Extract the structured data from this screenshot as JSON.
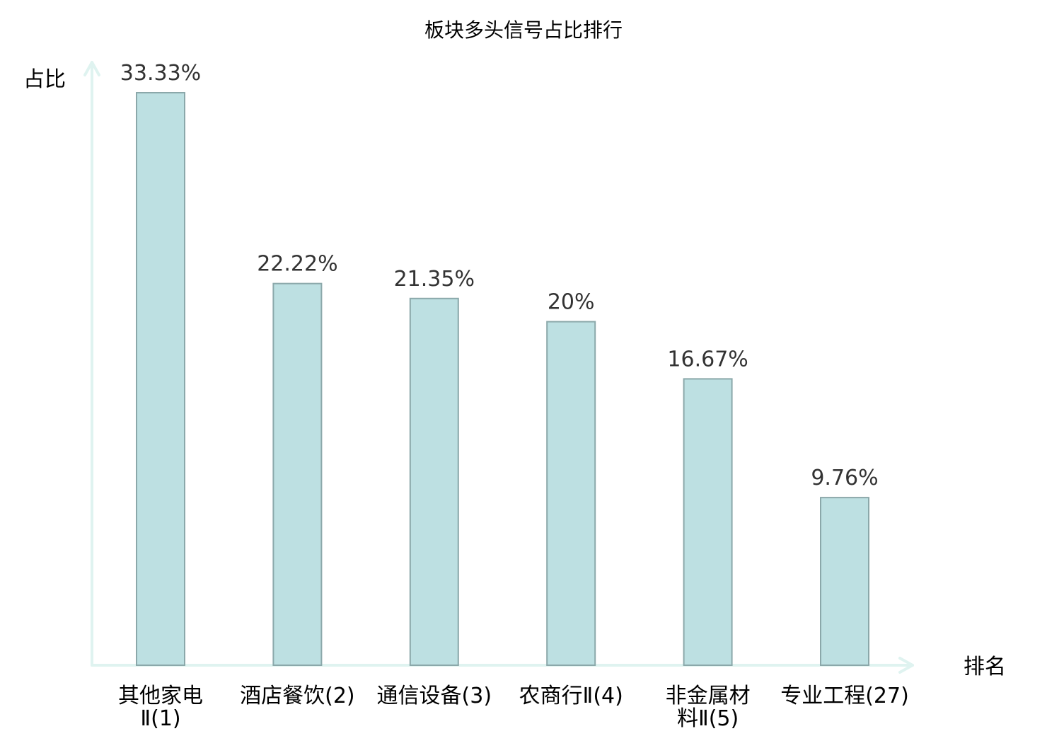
{
  "chart_data": {
    "type": "bar",
    "title": "板块多头信号占比排行",
    "xlabel": "排名",
    "ylabel": "占比",
    "ylim": [
      0,
      35
    ],
    "categories": [
      [
        "其他家电",
        "Ⅱ(1)"
      ],
      [
        "酒店餐饮(2)"
      ],
      [
        "通信设备(3)"
      ],
      [
        "农商行Ⅱ(4)"
      ],
      [
        "非金属材",
        "料Ⅱ(5)"
      ],
      [
        "专业工程(27)"
      ]
    ],
    "values": [
      33.33,
      22.22,
      21.35,
      20,
      16.67,
      9.76
    ],
    "value_labels": [
      "33.33%",
      "22.22%",
      "21.35%",
      "20%",
      "16.67%",
      "9.76%"
    ],
    "highlight_index": 5,
    "grid": false,
    "colors": {
      "bar_fill": "#bde0e2",
      "bar_stroke": "#8ba8aa",
      "axis": "#dff3f0",
      "highlight_text": "#e8141e",
      "value_text": "#333333"
    }
  }
}
